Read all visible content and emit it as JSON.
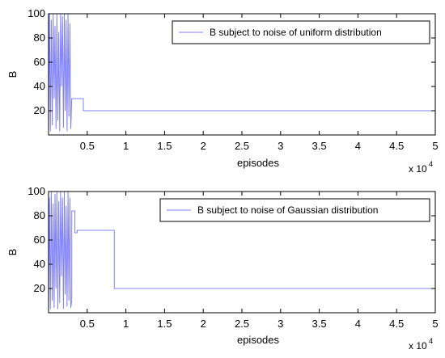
{
  "chart_data": [
    {
      "type": "line",
      "xlabel": "episodes",
      "ylabel": "B",
      "x_multiplier_label": "x 10",
      "x_multiplier_exponent": "4",
      "xlim": [
        0,
        50000
      ],
      "ylim": [
        0,
        100
      ],
      "xticks": [
        5000,
        10000,
        15000,
        20000,
        25000,
        30000,
        35000,
        40000,
        45000,
        50000
      ],
      "xtick_labels": [
        "0.5",
        "1",
        "1.5",
        "2",
        "2.5",
        "3",
        "3.5",
        "4",
        "4.5",
        "5"
      ],
      "yticks": [
        20,
        40,
        60,
        80,
        100
      ],
      "ytick_labels": [
        "20",
        "40",
        "60",
        "80",
        "100"
      ],
      "legend": "top-right",
      "line_color": "#8080ff",
      "series": [
        {
          "name": "B subject to noise of uniform distribution",
          "x": [
            0,
            120,
            240,
            360,
            480,
            600,
            720,
            840,
            960,
            1080,
            1200,
            1320,
            1440,
            1560,
            1680,
            1800,
            1920,
            2040,
            2160,
            2280,
            2400,
            2520,
            2640,
            2760,
            2880,
            3000,
            3000,
            4500,
            4500,
            50000
          ],
          "y": [
            3,
            100,
            3,
            95,
            8,
            100,
            30,
            90,
            5,
            100,
            12,
            85,
            3,
            100,
            40,
            98,
            6,
            100,
            20,
            95,
            3,
            100,
            15,
            92,
            5,
            30,
            30,
            30,
            20,
            20
          ]
        },
        {
          "name": "B subject to noise of Gaussian distribution",
          "x": [
            0,
            120,
            240,
            360,
            480,
            600,
            720,
            840,
            960,
            1080,
            1200,
            1320,
            1440,
            1560,
            1680,
            1800,
            1920,
            2040,
            2160,
            2280,
            2400,
            2520,
            2640,
            2760,
            2880,
            3000,
            3000,
            3400,
            3400,
            3700,
            3700,
            8500,
            8500,
            50000
          ],
          "y": [
            5,
            95,
            3,
            100,
            10,
            90,
            4,
            98,
            20,
            100,
            3,
            92,
            8,
            100,
            30,
            95,
            3,
            100,
            15,
            88,
            5,
            100,
            10,
            95,
            4,
            10,
            84,
            84,
            66,
            66,
            68,
            68,
            20,
            20
          ]
        }
      ]
    }
  ]
}
